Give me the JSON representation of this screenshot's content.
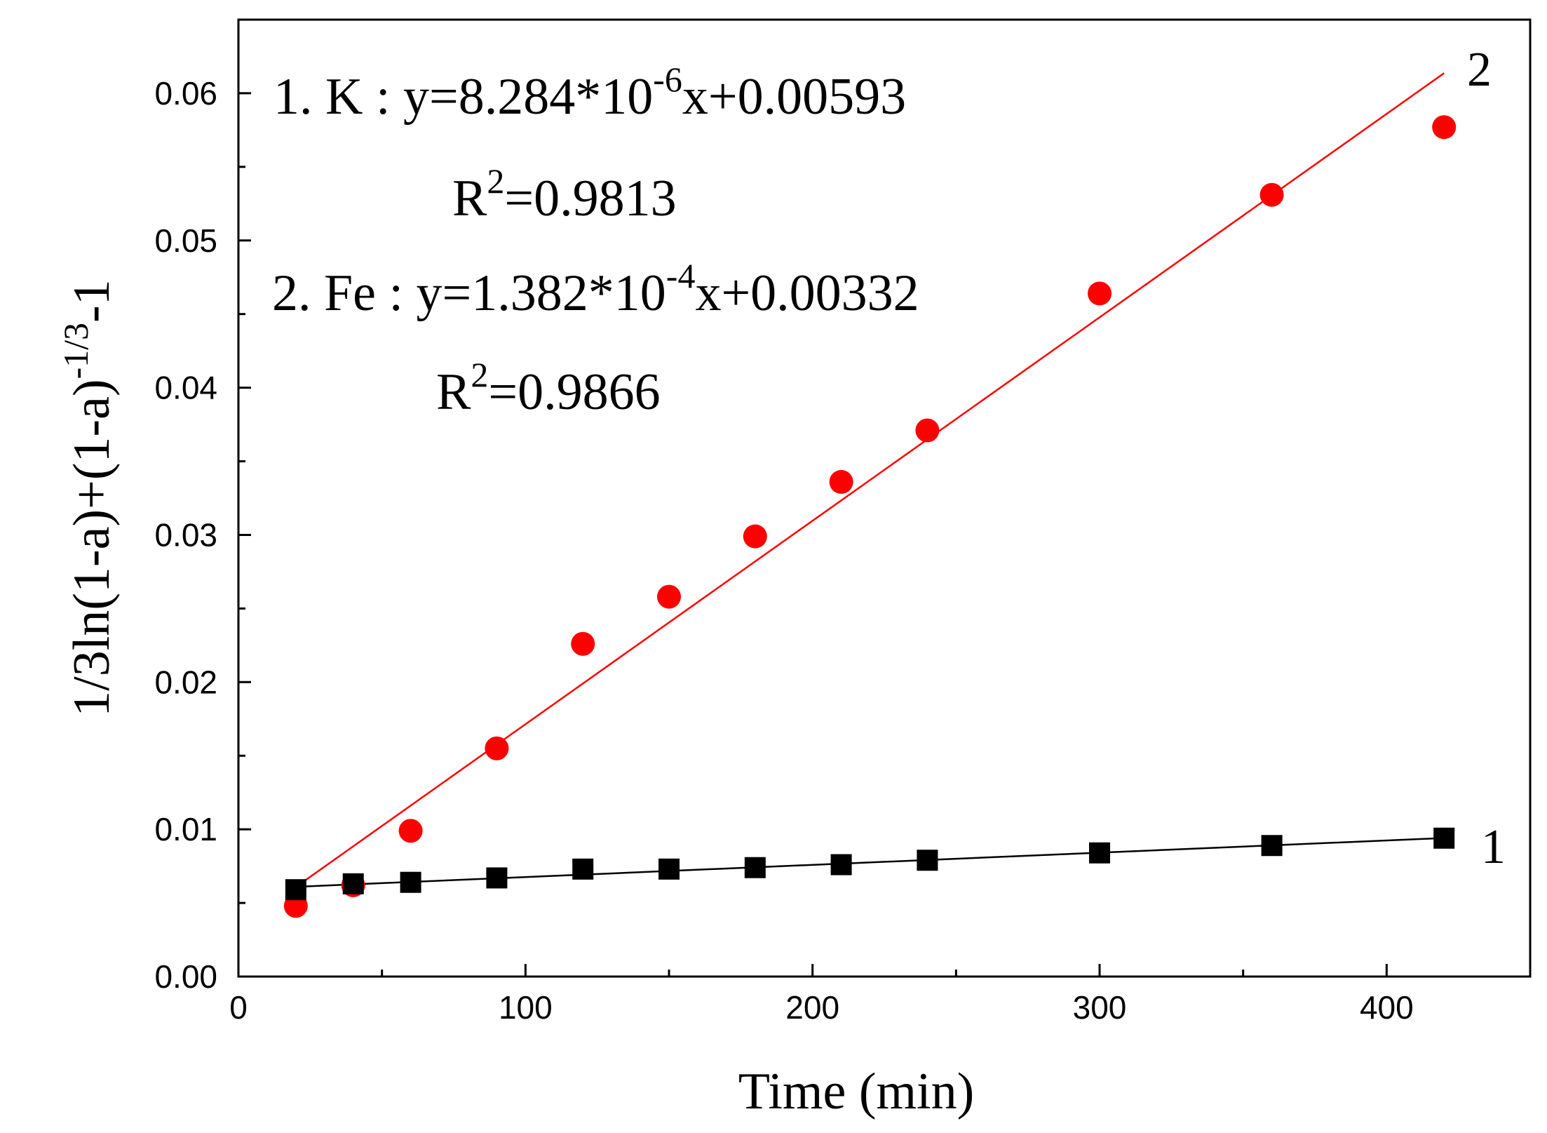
{
  "chart_data": {
    "type": "scatter",
    "title": "",
    "xlabel": "Time (min)",
    "ylabel": {
      "prefix": "1/3ln(1-a)+(1-a)",
      "sup": "-1/3",
      "suffix": "-1"
    },
    "xlim": [
      0,
      450
    ],
    "ylim": [
      0,
      0.065
    ],
    "x_ticks": [
      0,
      100,
      200,
      300,
      400
    ],
    "x_tick_labels": [
      "0",
      "100",
      "200",
      "300",
      "400"
    ],
    "y_ticks": [
      0,
      0.01,
      0.02,
      0.03,
      0.04,
      0.05,
      0.06
    ],
    "y_tick_labels": [
      "0.00",
      "0.01",
      "0.02",
      "0.03",
      "0.04",
      "0.05",
      "0.06"
    ],
    "grid": false,
    "series": [
      {
        "name": "1",
        "element": "K",
        "marker": "square",
        "color": "#000000",
        "x": [
          20,
          40,
          60,
          90,
          120,
          150,
          180,
          210,
          240,
          300,
          360,
          420
        ],
        "y": [
          0.0059,
          0.0063,
          0.0064,
          0.0067,
          0.0073,
          0.0073,
          0.0074,
          0.0076,
          0.0079,
          0.0084,
          0.0089,
          0.0094
        ],
        "fit": {
          "slope": 8.284e-06,
          "intercept": 0.00593,
          "x_range": [
            20,
            420
          ]
        }
      },
      {
        "name": "2",
        "element": "Fe",
        "marker": "circle",
        "color": "#ff0000",
        "x": [
          20,
          40,
          60,
          90,
          120,
          150,
          180,
          210,
          240,
          300,
          360,
          420
        ],
        "y": [
          0.0048,
          0.0062,
          0.0099,
          0.0155,
          0.0226,
          0.0258,
          0.0299,
          0.0336,
          0.0371,
          0.0464,
          0.0531,
          0.0577
        ],
        "fit": {
          "slope": 0.0001382,
          "intercept": 0.00332,
          "x_range": [
            20,
            420
          ]
        }
      }
    ],
    "annotations": [
      {
        "pre": "1. K :  y=8.284*10",
        "sup": "-6",
        "post": "x+0.00593"
      },
      {
        "pre": "R",
        "sup": "2",
        "post": "=0.9813"
      },
      {
        "pre": "2. Fe : y=1.382*10",
        "sup": "-4",
        "post": "x+0.00332"
      },
      {
        "pre": "R",
        "sup": "2",
        "post": "=0.9866"
      }
    ]
  }
}
